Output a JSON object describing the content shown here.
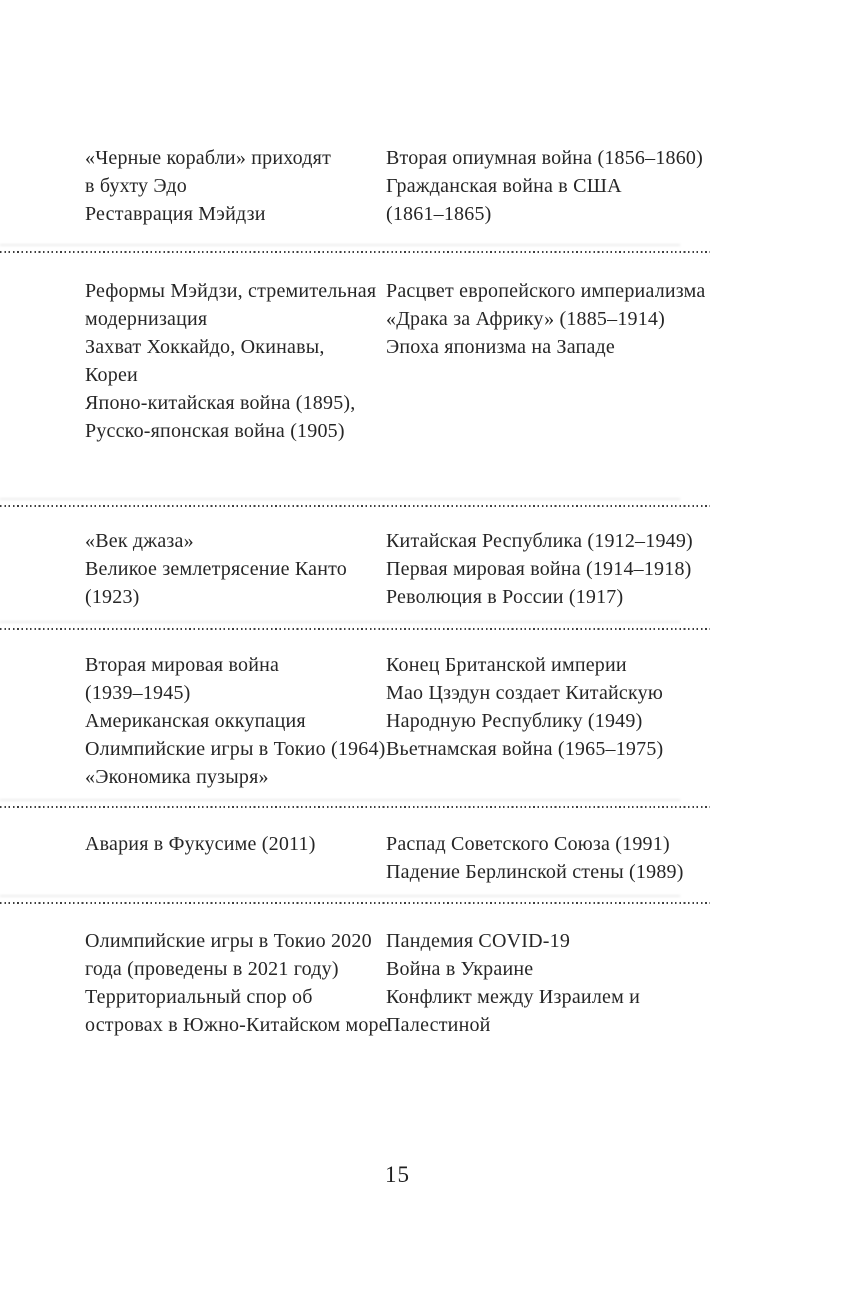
{
  "page": {
    "number": "15",
    "text_color": "#262626",
    "background_color": "#ffffff",
    "separator_color": "#3d3d3d"
  },
  "timeline_rows": [
    {
      "left": "«Черные корабли» приходят\nв бухту Эдо\nРеставрация Мэйдзи",
      "right": "Вторая опиумная война (1856–1860)\nГражданская война в США\n(1861–1865)"
    },
    {
      "left": "Реформы Мэйдзи, стремительная\nмодернизация\nЗахват Хоккайдо, Окинавы,\nКореи\nЯпоно-китайская война (1895),\nРусско-японская война (1905)",
      "right": "Расцвет европейского империализма\n«Драка за Африку» (1885–1914)\nЭпоха японизма на Западе"
    },
    {
      "left": "«Век джаза»\nВеликое землетрясение Канто\n(1923)",
      "right": "Китайская Республика (1912–1949)\nПервая мировая война (1914–1918)\nРеволюция в России (1917)"
    },
    {
      "left": "Вторая мировая война\n(1939–1945)\nАмериканская оккупация\nОлимпийские игры в Токио (1964)\n«Экономика пузыря»",
      "right": "Конец Британской империи\nМао Цзэдун создает Китайскую\nНародную Республику (1949)\nВьетнамская война (1965–1975)"
    },
    {
      "left": "Авария в Фукусиме (2011)",
      "right": "Распад Советского Союза (1991)\nПадение Берлинской стены (1989)"
    },
    {
      "left": "Олимпийские игры в Токио 2020\nгода (проведены в 2021 году)\nТерриториальный спор об\nостровах в Южно-Китайском море",
      "right": "Пандемия COVID-19\nВойна в Украине\nКонфликт между Израилем и\nПалестиной"
    }
  ]
}
